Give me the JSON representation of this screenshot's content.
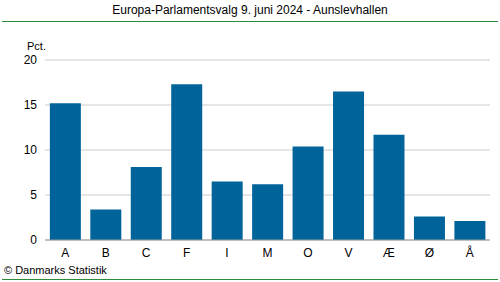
{
  "chart_data": {
    "type": "bar",
    "title": "Europa-Parlamentsvalg 9. juni 2024 - Aunslevhallen",
    "ylabel": "Pct.",
    "source": "© Danmarks Statistik",
    "categories": [
      "A",
      "B",
      "C",
      "F",
      "I",
      "M",
      "O",
      "V",
      "Æ",
      "Ø",
      "Å"
    ],
    "values": [
      15.2,
      3.4,
      8.1,
      17.3,
      6.5,
      6.2,
      10.4,
      16.5,
      11.7,
      2.6,
      2.1
    ],
    "color": "#00639a",
    "ylim": [
      0,
      20
    ],
    "yticks": [
      0,
      5,
      10,
      15,
      20
    ],
    "grid": true
  }
}
